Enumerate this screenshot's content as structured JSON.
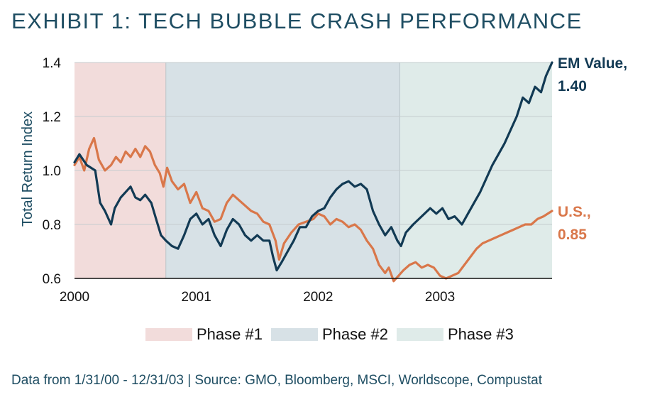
{
  "title": "EXHIBIT 1: TECH BUBBLE CRASH PERFORMANCE",
  "footer": "Data from 1/31/00 - 12/31/03 | Source: GMO, Bloomberg, MSCI, Worldscope, Compustat",
  "chart_data": {
    "type": "line",
    "ylabel": "Total Return Index",
    "xlabel": "",
    "ylim": [
      0.6,
      1.4
    ],
    "xlim": [
      2000,
      2003.92
    ],
    "yticks": [
      "0.6",
      "0.8",
      "1.0",
      "1.2",
      "1.4"
    ],
    "xticks": [
      "2000",
      "2001",
      "2002",
      "2003"
    ],
    "phases": [
      {
        "name": "Phase #1",
        "start": 2000.0,
        "end": 2000.75,
        "color": "#f2dcdb"
      },
      {
        "name": "Phase #2",
        "start": 2000.75,
        "end": 2002.67,
        "color": "#d7e1e6"
      },
      {
        "name": "Phase #3",
        "start": 2002.67,
        "end": 2003.92,
        "color": "#dfebe9"
      }
    ],
    "series": [
      {
        "name": "EM Value",
        "end_label_line1": "EM Value,",
        "end_label_line2": "1.40",
        "color": "#123a54",
        "points": [
          [
            2000.0,
            1.03
          ],
          [
            2000.04,
            1.06
          ],
          [
            2000.1,
            1.02
          ],
          [
            2000.17,
            1.0
          ],
          [
            2000.21,
            0.88
          ],
          [
            2000.25,
            0.85
          ],
          [
            2000.3,
            0.8
          ],
          [
            2000.33,
            0.86
          ],
          [
            2000.38,
            0.9
          ],
          [
            2000.42,
            0.92
          ],
          [
            2000.46,
            0.94
          ],
          [
            2000.5,
            0.9
          ],
          [
            2000.54,
            0.89
          ],
          [
            2000.58,
            0.91
          ],
          [
            2000.63,
            0.88
          ],
          [
            2000.67,
            0.82
          ],
          [
            2000.71,
            0.76
          ],
          [
            2000.75,
            0.74
          ],
          [
            2000.8,
            0.72
          ],
          [
            2000.85,
            0.71
          ],
          [
            2000.9,
            0.76
          ],
          [
            2000.95,
            0.82
          ],
          [
            2001.0,
            0.84
          ],
          [
            2001.05,
            0.8
          ],
          [
            2001.1,
            0.82
          ],
          [
            2001.15,
            0.76
          ],
          [
            2001.2,
            0.72
          ],
          [
            2001.25,
            0.78
          ],
          [
            2001.3,
            0.82
          ],
          [
            2001.35,
            0.8
          ],
          [
            2001.4,
            0.76
          ],
          [
            2001.45,
            0.74
          ],
          [
            2001.5,
            0.76
          ],
          [
            2001.55,
            0.74
          ],
          [
            2001.6,
            0.74
          ],
          [
            2001.63,
            0.68
          ],
          [
            2001.66,
            0.63
          ],
          [
            2001.7,
            0.66
          ],
          [
            2001.75,
            0.7
          ],
          [
            2001.8,
            0.74
          ],
          [
            2001.85,
            0.79
          ],
          [
            2001.9,
            0.79
          ],
          [
            2001.95,
            0.83
          ],
          [
            2002.0,
            0.85
          ],
          [
            2002.05,
            0.86
          ],
          [
            2002.1,
            0.9
          ],
          [
            2002.15,
            0.93
          ],
          [
            2002.2,
            0.95
          ],
          [
            2002.25,
            0.96
          ],
          [
            2002.3,
            0.94
          ],
          [
            2002.35,
            0.95
          ],
          [
            2002.4,
            0.93
          ],
          [
            2002.45,
            0.85
          ],
          [
            2002.5,
            0.8
          ],
          [
            2002.55,
            0.76
          ],
          [
            2002.6,
            0.79
          ],
          [
            2002.65,
            0.74
          ],
          [
            2002.68,
            0.72
          ],
          [
            2002.72,
            0.77
          ],
          [
            2002.78,
            0.8
          ],
          [
            2002.85,
            0.83
          ],
          [
            2002.92,
            0.86
          ],
          [
            2002.97,
            0.84
          ],
          [
            2003.02,
            0.86
          ],
          [
            2003.07,
            0.82
          ],
          [
            2003.12,
            0.83
          ],
          [
            2003.18,
            0.8
          ],
          [
            2003.23,
            0.84
          ],
          [
            2003.28,
            0.88
          ],
          [
            2003.33,
            0.92
          ],
          [
            2003.38,
            0.97
          ],
          [
            2003.43,
            1.02
          ],
          [
            2003.48,
            1.06
          ],
          [
            2003.53,
            1.1
          ],
          [
            2003.58,
            1.15
          ],
          [
            2003.63,
            1.2
          ],
          [
            2003.68,
            1.27
          ],
          [
            2003.73,
            1.25
          ],
          [
            2003.78,
            1.31
          ],
          [
            2003.83,
            1.29
          ],
          [
            2003.87,
            1.35
          ],
          [
            2003.92,
            1.4
          ]
        ]
      },
      {
        "name": "U.S.",
        "end_label_line1": "U.S.,",
        "end_label_line2": "0.85",
        "color": "#d9774a",
        "points": [
          [
            2000.0,
            1.02
          ],
          [
            2000.04,
            1.05
          ],
          [
            2000.08,
            1.0
          ],
          [
            2000.12,
            1.08
          ],
          [
            2000.16,
            1.12
          ],
          [
            2000.2,
            1.04
          ],
          [
            2000.25,
            1.0
          ],
          [
            2000.3,
            1.02
          ],
          [
            2000.34,
            1.05
          ],
          [
            2000.38,
            1.03
          ],
          [
            2000.42,
            1.07
          ],
          [
            2000.46,
            1.05
          ],
          [
            2000.5,
            1.08
          ],
          [
            2000.54,
            1.05
          ],
          [
            2000.58,
            1.09
          ],
          [
            2000.62,
            1.07
          ],
          [
            2000.66,
            1.02
          ],
          [
            2000.7,
            0.99
          ],
          [
            2000.73,
            0.94
          ],
          [
            2000.76,
            1.01
          ],
          [
            2000.8,
            0.96
          ],
          [
            2000.85,
            0.93
          ],
          [
            2000.9,
            0.95
          ],
          [
            2000.95,
            0.88
          ],
          [
            2001.0,
            0.92
          ],
          [
            2001.05,
            0.86
          ],
          [
            2001.1,
            0.85
          ],
          [
            2001.15,
            0.81
          ],
          [
            2001.2,
            0.82
          ],
          [
            2001.25,
            0.88
          ],
          [
            2001.3,
            0.91
          ],
          [
            2001.35,
            0.89
          ],
          [
            2001.4,
            0.87
          ],
          [
            2001.45,
            0.85
          ],
          [
            2001.5,
            0.84
          ],
          [
            2001.55,
            0.81
          ],
          [
            2001.6,
            0.8
          ],
          [
            2001.65,
            0.74
          ],
          [
            2001.68,
            0.67
          ],
          [
            2001.72,
            0.73
          ],
          [
            2001.78,
            0.77
          ],
          [
            2001.84,
            0.8
          ],
          [
            2001.9,
            0.81
          ],
          [
            2001.96,
            0.82
          ],
          [
            2002.0,
            0.84
          ],
          [
            2002.05,
            0.83
          ],
          [
            2002.1,
            0.8
          ],
          [
            2002.15,
            0.82
          ],
          [
            2002.2,
            0.81
          ],
          [
            2002.25,
            0.79
          ],
          [
            2002.3,
            0.8
          ],
          [
            2002.35,
            0.78
          ],
          [
            2002.4,
            0.74
          ],
          [
            2002.45,
            0.71
          ],
          [
            2002.5,
            0.65
          ],
          [
            2002.55,
            0.62
          ],
          [
            2002.58,
            0.64
          ],
          [
            2002.62,
            0.59
          ],
          [
            2002.66,
            0.61
          ],
          [
            2002.7,
            0.63
          ],
          [
            2002.75,
            0.65
          ],
          [
            2002.8,
            0.66
          ],
          [
            2002.85,
            0.64
          ],
          [
            2002.9,
            0.65
          ],
          [
            2002.95,
            0.64
          ],
          [
            2003.0,
            0.61
          ],
          [
            2003.05,
            0.6
          ],
          [
            2003.1,
            0.61
          ],
          [
            2003.15,
            0.62
          ],
          [
            2003.2,
            0.65
          ],
          [
            2003.25,
            0.68
          ],
          [
            2003.3,
            0.71
          ],
          [
            2003.35,
            0.73
          ],
          [
            2003.4,
            0.74
          ],
          [
            2003.45,
            0.75
          ],
          [
            2003.5,
            0.76
          ],
          [
            2003.55,
            0.77
          ],
          [
            2003.6,
            0.78
          ],
          [
            2003.65,
            0.79
          ],
          [
            2003.7,
            0.8
          ],
          [
            2003.75,
            0.8
          ],
          [
            2003.8,
            0.82
          ],
          [
            2003.85,
            0.83
          ],
          [
            2003.92,
            0.85
          ]
        ]
      }
    ]
  }
}
